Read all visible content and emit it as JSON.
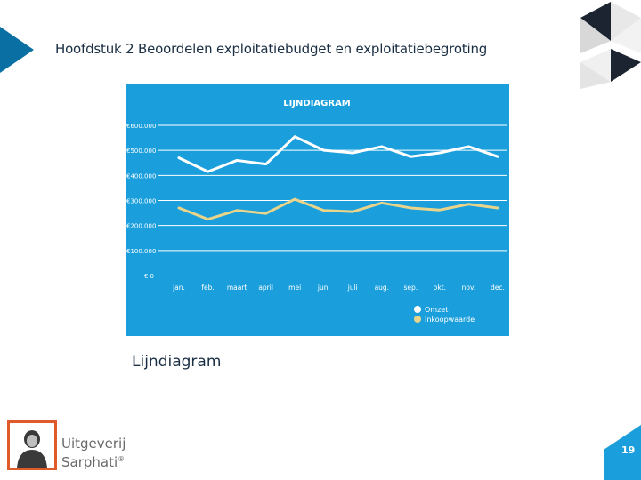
{
  "slide": {
    "title": "Hoofdstuk 2 Beoordelen exploitatiebudget en exploitatiebegroting",
    "caption": "Lijndiagram",
    "page_number": "19"
  },
  "publisher": {
    "line1": "Uitgeverij",
    "line2": "Sarphati",
    "trademark": "®"
  },
  "colors": {
    "accent": "#1a9fdc",
    "dark_blue": "#0a6fa3",
    "omzet_line": "#ffffff",
    "inkoop_line": "#e8d48a"
  },
  "chart_data": {
    "type": "line",
    "title": "LIJNDIAGRAM",
    "xlabel": "",
    "ylabel": "",
    "categories": [
      "jan.",
      "feb.",
      "maart",
      "april",
      "mei",
      "juni",
      "juli",
      "aug.",
      "sep.",
      "okt.",
      "nov.",
      "dec."
    ],
    "y_tick_labels": [
      "€ 0",
      "€100.000",
      "€200.000",
      "€300.000",
      "€400.000",
      "€500.000",
      "€600.000"
    ],
    "y_tick_values": [
      0,
      100000,
      200000,
      300000,
      400000,
      500000,
      600000
    ],
    "ylim": [
      0,
      600000
    ],
    "grid": true,
    "legend_position": "bottom-right",
    "series": [
      {
        "name": "Omzet",
        "color": "#ffffff",
        "values": [
          470000,
          415000,
          460000,
          445000,
          555000,
          500000,
          490000,
          515000,
          475000,
          490000,
          515000,
          475000
        ]
      },
      {
        "name": "Inkoopwaarde",
        "color": "#e8d48a",
        "values": [
          270000,
          225000,
          260000,
          248000,
          305000,
          260000,
          255000,
          290000,
          270000,
          262000,
          285000,
          270000
        ]
      }
    ]
  }
}
